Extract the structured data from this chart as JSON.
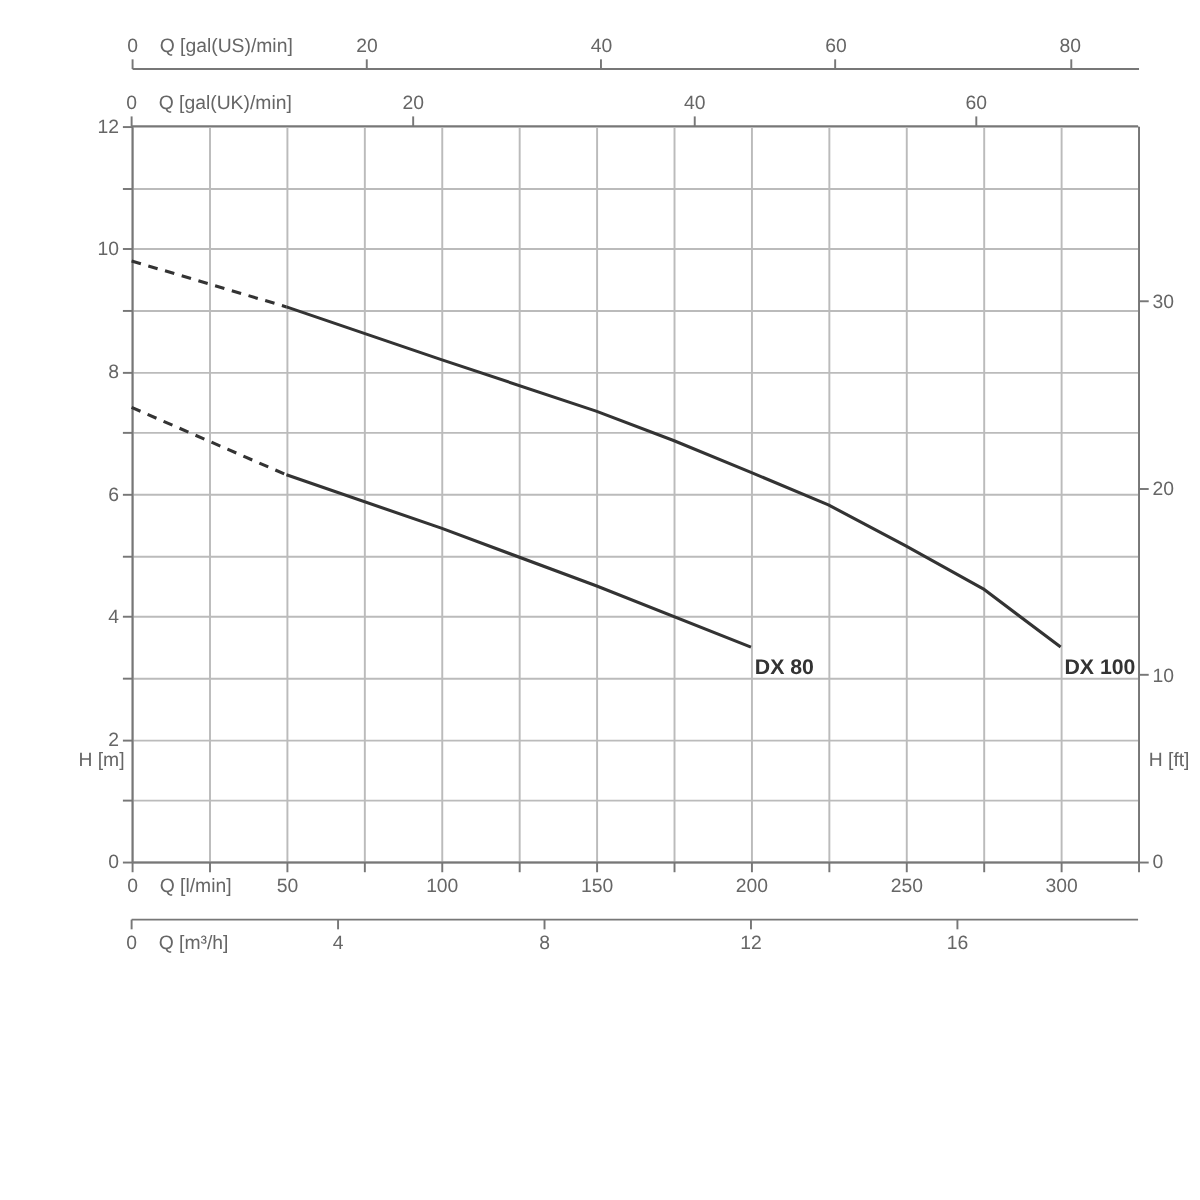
{
  "chart_data": {
    "type": "line",
    "xlabel": "Q [l/min]",
    "ylabel": "H [m]",
    "y2label": "H [ft]",
    "x2label": "Q [gal(US)/min]",
    "annotations": [
      "Q [gal(UK)/min]",
      "0",
      "20",
      "40",
      "60",
      "Q [m³/h]",
      "0",
      "4",
      "8",
      "12",
      "16"
    ],
    "xlim": [
      0,
      325
    ],
    "xticks": [
      0,
      {
        "value": 25,
        "label": null
      },
      50,
      {
        "value": 75,
        "label": null
      },
      100,
      {
        "value": 125,
        "label": null
      },
      150,
      {
        "value": 175,
        "label": null
      },
      200,
      {
        "value": 225,
        "label": null
      },
      250,
      {
        "value": 275,
        "label": null
      },
      300,
      {
        "value": 325,
        "label": null
      }
    ],
    "ylim": [
      0,
      12
    ],
    "yticks": [
      0,
      {
        "value": 1,
        "label": null
      },
      2,
      {
        "value": 3,
        "label": null
      },
      4,
      {
        "value": 5,
        "label": null
      },
      6,
      {
        "value": 7,
        "label": null
      },
      8,
      {
        "value": 9,
        "label": null
      },
      10,
      {
        "value": 11,
        "label": null
      },
      12
    ],
    "y2lim": [
      0,
      39.37
    ],
    "y2ticks": [
      0,
      10,
      20,
      30
    ],
    "x2lim": [
      0,
      85.86
    ],
    "x2ticks": [
      0,
      20,
      40,
      60,
      80
    ],
    "grid": true,
    "series": [
      {
        "color": "#333333",
        "line_style": "dashed",
        "x": [
          0,
          50
        ],
        "values": [
          9.8,
          9.05
        ]
      },
      {
        "name": "DX 100",
        "color": "#333333",
        "line_style": "solid",
        "x": [
          50,
          100,
          150,
          175,
          200,
          225,
          250,
          275,
          300
        ],
        "values": [
          9.05,
          8.19,
          7.35,
          6.87,
          6.35,
          5.82,
          5.15,
          4.45,
          3.5
        ]
      },
      {
        "color": "#333333",
        "line_style": "dashed",
        "x": [
          0,
          50
        ],
        "values": [
          7.41,
          6.31
        ]
      },
      {
        "name": "DX 80",
        "color": "#333333",
        "line_style": "solid",
        "x": [
          50,
          100,
          150,
          200
        ],
        "values": [
          6.31,
          5.44,
          4.5,
          3.5
        ]
      }
    ]
  }
}
